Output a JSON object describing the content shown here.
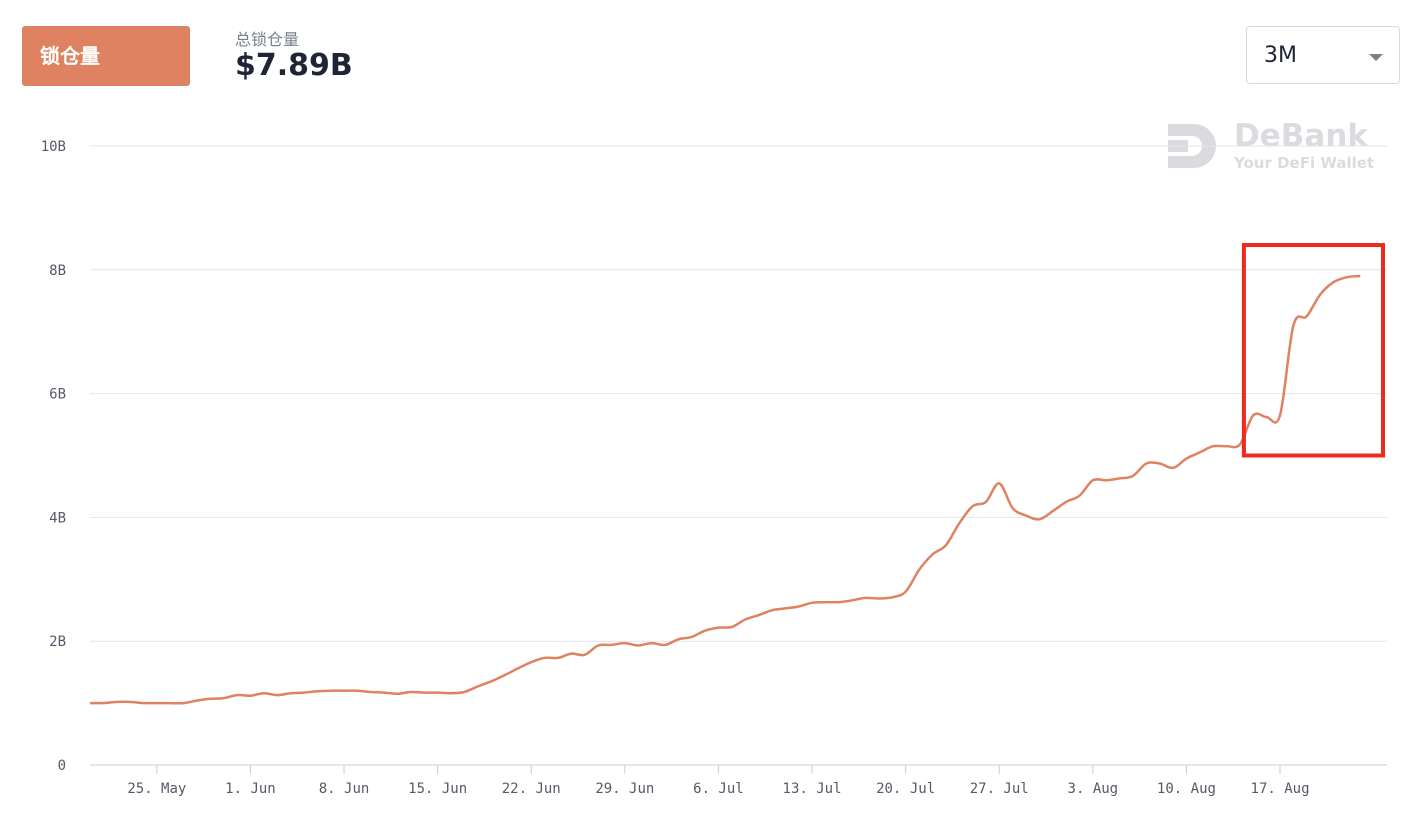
{
  "header": {
    "tab_label": "锁仓量",
    "stat_label": "总锁仓量",
    "stat_value": "$7.89B"
  },
  "range_select": {
    "value": "3M"
  },
  "watermark": {
    "brand": "DeBank",
    "tagline": "Your DeFi Wallet",
    "icon": "debank-logo-icon"
  },
  "colors": {
    "accent": "#df8261",
    "highlight": "#ee2a1f",
    "grid": "#e2e4ea"
  },
  "chart_data": {
    "type": "line",
    "title": "",
    "xlabel": "",
    "ylabel": "",
    "y_ticks": [
      {
        "value": 0,
        "label": "0"
      },
      {
        "value": 2,
        "label": "2B"
      },
      {
        "value": 4,
        "label": "4B"
      },
      {
        "value": 6,
        "label": "6B"
      },
      {
        "value": 8,
        "label": "8B"
      },
      {
        "value": 10,
        "label": "10B"
      }
    ],
    "ylim": [
      0,
      10
    ],
    "y_unit": "B",
    "x_ticks": [
      {
        "label": "25. May",
        "date": "2020-05-25"
      },
      {
        "label": "1. Jun",
        "date": "2020-06-01"
      },
      {
        "label": "8. Jun",
        "date": "2020-06-08"
      },
      {
        "label": "15. Jun",
        "date": "2020-06-15"
      },
      {
        "label": "22. Jun",
        "date": "2020-06-22"
      },
      {
        "label": "29. Jun",
        "date": "2020-06-29"
      },
      {
        "label": "6. Jul",
        "date": "2020-07-06"
      },
      {
        "label": "13. Jul",
        "date": "2020-07-13"
      },
      {
        "label": "20. Jul",
        "date": "2020-07-20"
      },
      {
        "label": "27. Jul",
        "date": "2020-07-27"
      },
      {
        "label": "3. Aug",
        "date": "2020-08-03"
      },
      {
        "label": "10. Aug",
        "date": "2020-08-10"
      },
      {
        "label": "17. Aug",
        "date": "2020-08-17"
      }
    ],
    "grid": true,
    "legend": "none",
    "series": [
      {
        "color": "#df8261",
        "points": [
          [
            "2020-05-20",
            1.0
          ],
          [
            "2020-05-21",
            1.0
          ],
          [
            "2020-05-22",
            1.02
          ],
          [
            "2020-05-23",
            1.02
          ],
          [
            "2020-05-24",
            1.0
          ],
          [
            "2020-05-25",
            1.0
          ],
          [
            "2020-05-26",
            1.0
          ],
          [
            "2020-05-27",
            1.0
          ],
          [
            "2020-05-28",
            1.04
          ],
          [
            "2020-05-29",
            1.07
          ],
          [
            "2020-05-30",
            1.08
          ],
          [
            "2020-05-31",
            1.13
          ],
          [
            "2020-06-01",
            1.12
          ],
          [
            "2020-06-02",
            1.16
          ],
          [
            "2020-06-03",
            1.13
          ],
          [
            "2020-06-04",
            1.16
          ],
          [
            "2020-06-05",
            1.17
          ],
          [
            "2020-06-06",
            1.19
          ],
          [
            "2020-06-07",
            1.2
          ],
          [
            "2020-06-08",
            1.2
          ],
          [
            "2020-06-09",
            1.2
          ],
          [
            "2020-06-10",
            1.18
          ],
          [
            "2020-06-11",
            1.17
          ],
          [
            "2020-06-12",
            1.15
          ],
          [
            "2020-06-13",
            1.18
          ],
          [
            "2020-06-14",
            1.17
          ],
          [
            "2020-06-15",
            1.17
          ],
          [
            "2020-06-16",
            1.16
          ],
          [
            "2020-06-17",
            1.18
          ],
          [
            "2020-06-18",
            1.27
          ],
          [
            "2020-06-19",
            1.35
          ],
          [
            "2020-06-20",
            1.45
          ],
          [
            "2020-06-21",
            1.56
          ],
          [
            "2020-06-22",
            1.66
          ],
          [
            "2020-06-23",
            1.73
          ],
          [
            "2020-06-24",
            1.73
          ],
          [
            "2020-06-25",
            1.8
          ],
          [
            "2020-06-26",
            1.78
          ],
          [
            "2020-06-27",
            1.93
          ],
          [
            "2020-06-28",
            1.94
          ],
          [
            "2020-06-29",
            1.97
          ],
          [
            "2020-06-30",
            1.93
          ],
          [
            "2020-07-01",
            1.97
          ],
          [
            "2020-07-02",
            1.94
          ],
          [
            "2020-07-03",
            2.03
          ],
          [
            "2020-07-04",
            2.07
          ],
          [
            "2020-07-05",
            2.17
          ],
          [
            "2020-07-06",
            2.22
          ],
          [
            "2020-07-07",
            2.23
          ],
          [
            "2020-07-08",
            2.35
          ],
          [
            "2020-07-09",
            2.42
          ],
          [
            "2020-07-10",
            2.5
          ],
          [
            "2020-07-11",
            2.53
          ],
          [
            "2020-07-12",
            2.56
          ],
          [
            "2020-07-13",
            2.62
          ],
          [
            "2020-07-14",
            2.63
          ],
          [
            "2020-07-15",
            2.63
          ],
          [
            "2020-07-16",
            2.66
          ],
          [
            "2020-07-17",
            2.7
          ],
          [
            "2020-07-18",
            2.69
          ],
          [
            "2020-07-19",
            2.71
          ],
          [
            "2020-07-20",
            2.8
          ],
          [
            "2020-07-21",
            3.15
          ],
          [
            "2020-07-22",
            3.4
          ],
          [
            "2020-07-23",
            3.55
          ],
          [
            "2020-07-24",
            3.9
          ],
          [
            "2020-07-25",
            4.18
          ],
          [
            "2020-07-26",
            4.25
          ],
          [
            "2020-07-27",
            4.55
          ],
          [
            "2020-07-28",
            4.15
          ],
          [
            "2020-07-29",
            4.03
          ],
          [
            "2020-07-30",
            3.97
          ],
          [
            "2020-07-31",
            4.1
          ],
          [
            "2020-08-01",
            4.25
          ],
          [
            "2020-08-02",
            4.35
          ],
          [
            "2020-08-03",
            4.6
          ],
          [
            "2020-08-04",
            4.6
          ],
          [
            "2020-08-05",
            4.63
          ],
          [
            "2020-08-06",
            4.67
          ],
          [
            "2020-08-07",
            4.87
          ],
          [
            "2020-08-08",
            4.87
          ],
          [
            "2020-08-09",
            4.8
          ],
          [
            "2020-08-10",
            4.95
          ],
          [
            "2020-08-11",
            5.05
          ],
          [
            "2020-08-12",
            5.15
          ],
          [
            "2020-08-13",
            5.15
          ],
          [
            "2020-08-14",
            5.18
          ],
          [
            "2020-08-15",
            5.65
          ],
          [
            "2020-08-16",
            5.62
          ],
          [
            "2020-08-17",
            5.65
          ],
          [
            "2020-08-18",
            7.1
          ],
          [
            "2020-08-19",
            7.25
          ],
          [
            "2020-08-20",
            7.6
          ],
          [
            "2020-08-21",
            7.8
          ],
          [
            "2020-08-22",
            7.88
          ],
          [
            "2020-08-23",
            7.9
          ]
        ]
      }
    ],
    "highlight_box": {
      "x_from": "2020-08-14",
      "x_to": "2020-08-25",
      "y_from": 5.0,
      "y_to": 8.4
    }
  }
}
